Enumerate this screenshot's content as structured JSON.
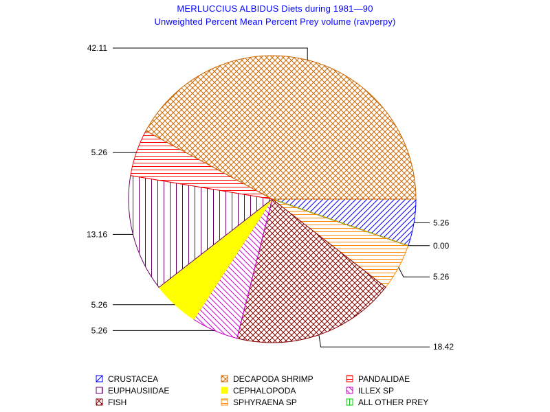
{
  "chart_data": {
    "type": "pie",
    "title": "MERLUCCIUS ALBIDUS Diets during 1981—90",
    "subtitle": "Unweighted Percent Mean Percent Prey  volume (ravperpy)",
    "legend_position": "bottom",
    "slices": [
      {
        "name": "CRUSTACEA",
        "value": 5.26,
        "label": "5.26",
        "color": "#0000ff",
        "pattern": "diag-right"
      },
      {
        "name": "ALL OTHER PREY",
        "value": 0.0,
        "label": "0.00",
        "color": "#00cc00",
        "pattern": "vertical"
      },
      {
        "name": "SPHYRAENA SP",
        "value": 5.26,
        "label": "5.26",
        "color": "#ff8800",
        "pattern": "horizontal"
      },
      {
        "name": "FISH",
        "value": 18.42,
        "label": "18.42",
        "color": "#800000",
        "pattern": "crosshatch"
      },
      {
        "name": "ILLEX SP",
        "value": 5.26,
        "label": "5.26",
        "color": "#cc00cc",
        "pattern": "diag-left"
      },
      {
        "name": "CEPHALOPODA",
        "value": 5.26,
        "label": "5.26",
        "color": "#ffff00",
        "pattern": "solid"
      },
      {
        "name": "EUPHAUSIIDAE",
        "value": 13.16,
        "label": "13.16",
        "color": "#660066",
        "pattern": "vertical"
      },
      {
        "name": "PANDALIDAE",
        "value": 5.26,
        "label": "5.26",
        "color": "#ff0000",
        "pattern": "horizontal"
      },
      {
        "name": "DECAPODA SHRIMP",
        "value": 42.11,
        "label": "42.11",
        "color": "#cc6600",
        "pattern": "crosshatch"
      }
    ],
    "legend": [
      {
        "name": "CRUSTACEA",
        "color": "#0000ff",
        "pattern": "diag-right"
      },
      {
        "name": "DECAPODA SHRIMP",
        "color": "#cc6600",
        "pattern": "crosshatch"
      },
      {
        "name": "PANDALIDAE",
        "color": "#ff0000",
        "pattern": "horizontal"
      },
      {
        "name": "EUPHAUSIIDAE",
        "color": "#660066",
        "pattern": "vertical"
      },
      {
        "name": "CEPHALOPODA",
        "color": "#ffff00",
        "pattern": "solid"
      },
      {
        "name": "ILLEX SP",
        "color": "#cc00cc",
        "pattern": "diag-left"
      },
      {
        "name": "FISH",
        "color": "#800000",
        "pattern": "crosshatch"
      },
      {
        "name": "SPHYRAENA SP",
        "color": "#ff8800",
        "pattern": "horizontal"
      },
      {
        "name": "ALL OTHER PREY",
        "color": "#00cc00",
        "pattern": "vertical"
      }
    ]
  }
}
